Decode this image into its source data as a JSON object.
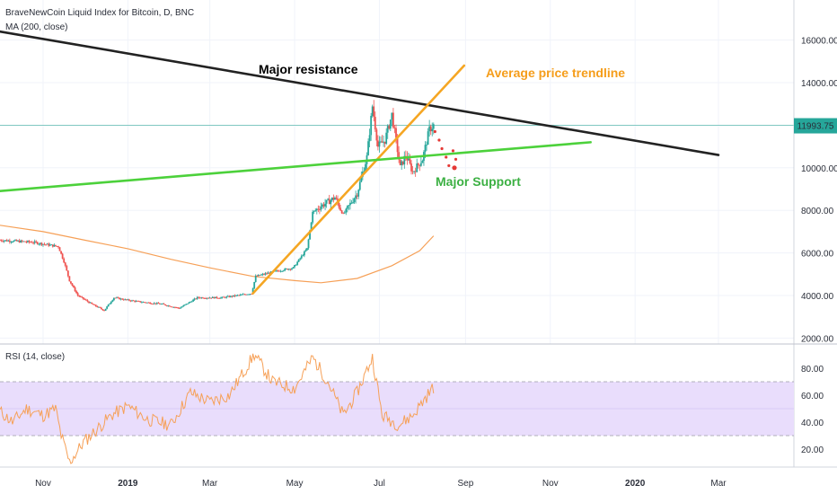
{
  "chart_data": [
    {
      "type": "candlestick",
      "title": "BraveNewCoin Liquid Index for Bitcoin, D, BNC",
      "indicator": "MA (200, close)",
      "x_ticks": [
        "Nov",
        "2019",
        "Mar",
        "May",
        "Jul",
        "Sep",
        "Nov",
        "2020",
        "Mar"
      ],
      "y_ticks": [
        "16000.00",
        "14000.00",
        "12000.00",
        "10000.00",
        "8000.00",
        "6000.00",
        "4000.00",
        "2000.00"
      ],
      "ylim": [
        2000,
        16000
      ],
      "last_price": "11993.75",
      "price_line": 11994,
      "price_path": [
        [
          "2018-10-01",
          6600
        ],
        [
          "2018-10-25",
          6500
        ],
        [
          "2018-11-12",
          6300
        ],
        [
          "2018-11-16",
          5600
        ],
        [
          "2018-11-20",
          4700
        ],
        [
          "2018-11-26",
          4000
        ],
        [
          "2018-12-06",
          3600
        ],
        [
          "2018-12-15",
          3300
        ],
        [
          "2018-12-22",
          3900
        ],
        [
          "2018-12-30",
          3800
        ],
        [
          "2019-01-10",
          3700
        ],
        [
          "2019-01-25",
          3600
        ],
        [
          "2019-02-07",
          3400
        ],
        [
          "2019-02-20",
          3900
        ],
        [
          "2019-03-10",
          3900
        ],
        [
          "2019-03-31",
          4100
        ],
        [
          "2019-04-03",
          4900
        ],
        [
          "2019-04-15",
          5100
        ],
        [
          "2019-04-30",
          5300
        ],
        [
          "2019-05-10",
          6200
        ],
        [
          "2019-05-14",
          7900
        ],
        [
          "2019-05-20",
          8200
        ],
        [
          "2019-05-30",
          8600
        ],
        [
          "2019-06-05",
          7800
        ],
        [
          "2019-06-15",
          8800
        ],
        [
          "2019-06-22",
          10500
        ],
        [
          "2019-06-26",
          12900
        ],
        [
          "2019-06-30",
          11000
        ],
        [
          "2019-07-05",
          11300
        ],
        [
          "2019-07-10",
          12500
        ],
        [
          "2019-07-16",
          10000
        ],
        [
          "2019-07-20",
          10600
        ],
        [
          "2019-07-25",
          9800
        ],
        [
          "2019-08-01",
          10400
        ],
        [
          "2019-08-06",
          11800
        ],
        [
          "2019-08-09",
          11994
        ]
      ],
      "ma200": [
        [
          "2018-10-01",
          7300
        ],
        [
          "2018-11-01",
          7000
        ],
        [
          "2018-12-01",
          6600
        ],
        [
          "2019-01-01",
          6200
        ],
        [
          "2019-02-01",
          5700
        ],
        [
          "2019-03-01",
          5300
        ],
        [
          "2019-04-01",
          4900
        ],
        [
          "2019-05-01",
          4700
        ],
        [
          "2019-05-20",
          4600
        ],
        [
          "2019-06-15",
          4800
        ],
        [
          "2019-07-10",
          5400
        ],
        [
          "2019-07-30",
          6100
        ],
        [
          "2019-08-09",
          6800
        ]
      ],
      "annotations": [
        {
          "text": "Major resistance",
          "color": "#000000"
        },
        {
          "text": "Average price trendline",
          "color": "#f59d1b"
        },
        {
          "text": "Major Support",
          "color": "#3cb043"
        }
      ],
      "trendlines": [
        {
          "name": "Major resistance",
          "color": "#222222",
          "from": [
            "2018-10-01",
            16400
          ],
          "to": [
            "2020-03-01",
            10600
          ]
        },
        {
          "name": "Average price trendline",
          "color": "#f5a623",
          "from": [
            "2019-04-01",
            4100
          ],
          "to": [
            "2019-08-31",
            14800
          ]
        },
        {
          "name": "Major Support",
          "color": "#4cd13b",
          "from": [
            "2018-03-09",
            7800
          ],
          "to": [
            "2019-11-30",
            11200
          ]
        }
      ],
      "forecast_dots": [
        [
          "2019-08-10",
          11700
        ],
        [
          "2019-08-13",
          11300
        ],
        [
          "2019-08-15",
          10900
        ],
        [
          "2019-08-18",
          10500
        ],
        [
          "2019-08-20",
          10100
        ],
        [
          "2019-08-24",
          10000
        ],
        [
          "2019-08-25",
          10400
        ],
        [
          "2019-08-23",
          10800
        ]
      ]
    },
    {
      "type": "line",
      "title": "RSI (14, close)",
      "y_ticks": [
        "80.00",
        "60.00",
        "40.00",
        "20.00"
      ],
      "ylim": [
        0,
        90
      ],
      "band": [
        30,
        70
      ],
      "rsi": [
        [
          "2018-10-01",
          48
        ],
        [
          "2018-10-10",
          40
        ],
        [
          "2018-10-20",
          50
        ],
        [
          "2018-11-01",
          45
        ],
        [
          "2018-11-10",
          50
        ],
        [
          "2018-11-14",
          30
        ],
        [
          "2018-11-20",
          10
        ],
        [
          "2018-11-30",
          25
        ],
        [
          "2018-12-10",
          35
        ],
        [
          "2018-12-20",
          45
        ],
        [
          "2019-01-01",
          52
        ],
        [
          "2019-01-15",
          42
        ],
        [
          "2019-02-01",
          38
        ],
        [
          "2019-02-15",
          62
        ],
        [
          "2019-03-01",
          55
        ],
        [
          "2019-03-15",
          60
        ],
        [
          "2019-04-02",
          90
        ],
        [
          "2019-04-15",
          70
        ],
        [
          "2019-05-01",
          65
        ],
        [
          "2019-05-14",
          88
        ],
        [
          "2019-05-25",
          70
        ],
        [
          "2019-06-05",
          45
        ],
        [
          "2019-06-15",
          62
        ],
        [
          "2019-06-26",
          88
        ],
        [
          "2019-07-03",
          45
        ],
        [
          "2019-07-15",
          38
        ],
        [
          "2019-07-25",
          45
        ],
        [
          "2019-08-01",
          55
        ],
        [
          "2019-08-09",
          66
        ]
      ]
    }
  ]
}
